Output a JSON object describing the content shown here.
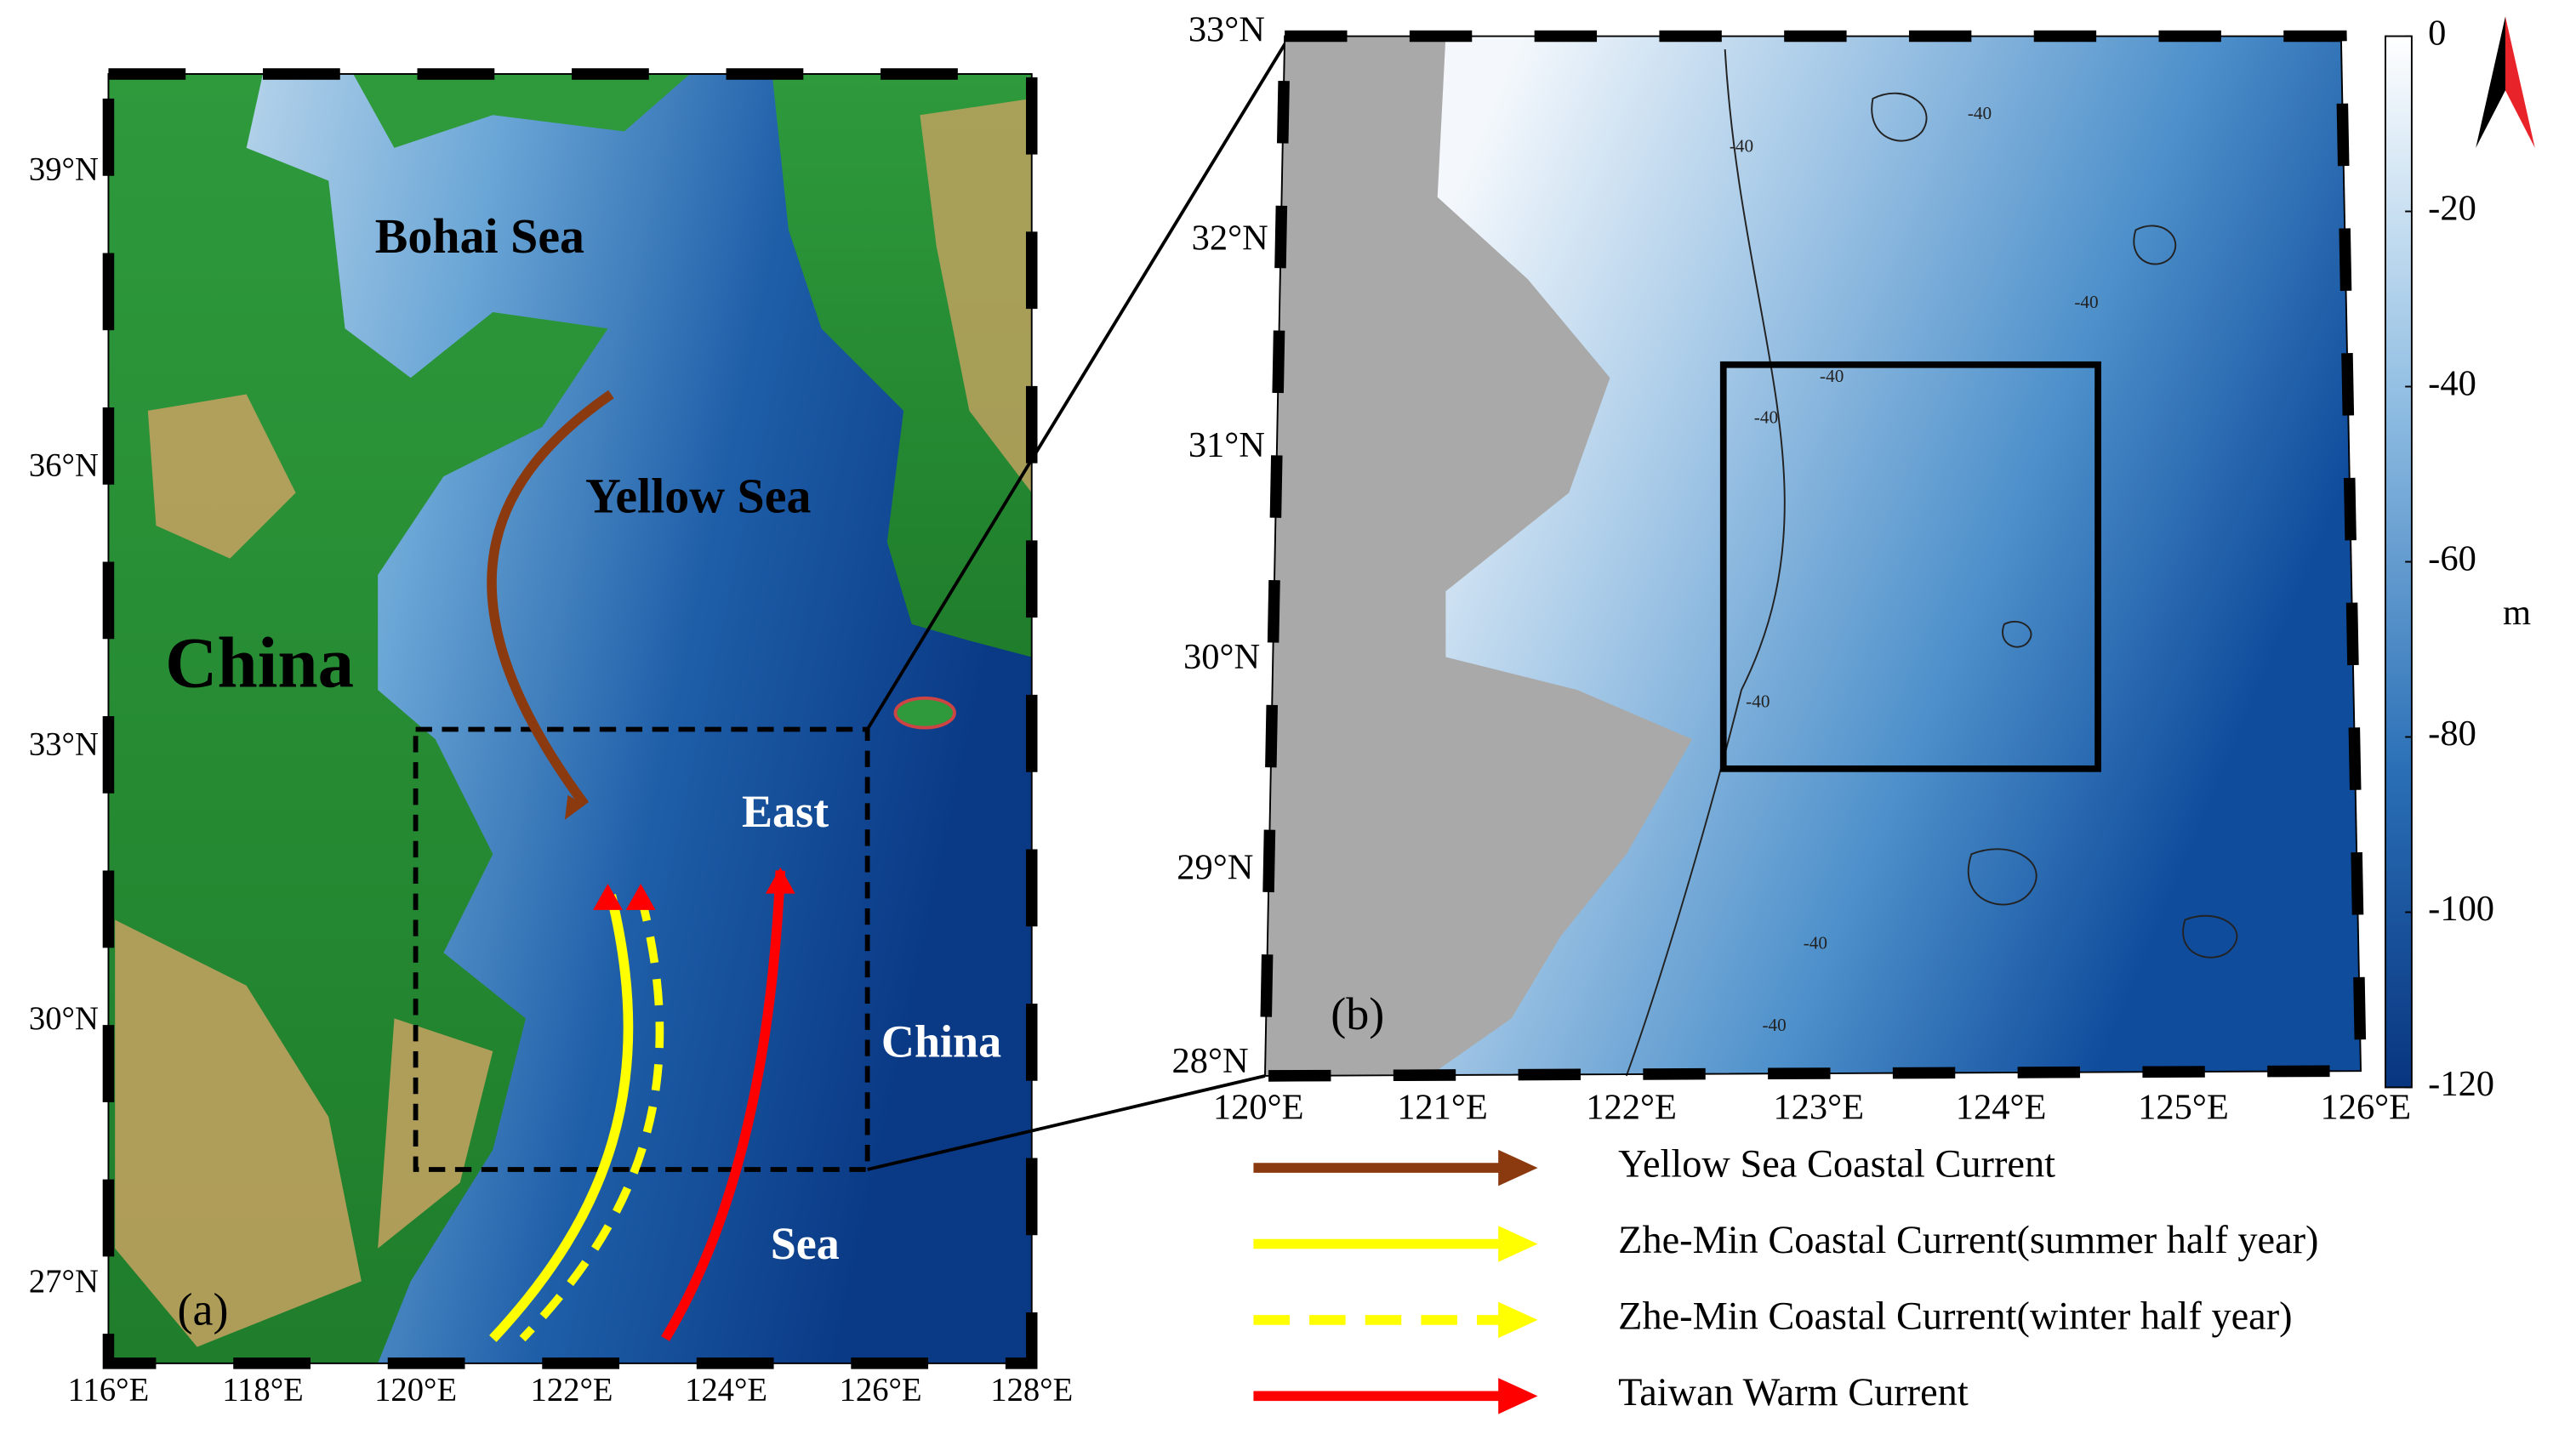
{
  "panel_a": {
    "label": "(a)",
    "lon_ticks": [
      "116°E",
      "118°E",
      "120°E",
      "122°E",
      "124°E",
      "126°E",
      "128°E"
    ],
    "lat_ticks": [
      "39°N",
      "36°N",
      "33°N",
      "30°N",
      "27°N"
    ],
    "places": [
      "Bohai Sea",
      "Yellow Sea",
      "China",
      "East",
      "China",
      "Sea"
    ]
  },
  "panel_b": {
    "label": "(b)",
    "lon_ticks": [
      "120°E",
      "121°E",
      "122°E",
      "123°E",
      "124°E",
      "125°E",
      "126°E"
    ],
    "lat_ticks": [
      "33°N",
      "32°N",
      "31°N",
      "30°N",
      "29°N",
      "28°N"
    ],
    "contour_labels": [
      "-40",
      "-40",
      "-40",
      "-40",
      "-40",
      "-40",
      "-40",
      "-40"
    ]
  },
  "colorbar": {
    "unit": "m",
    "lim": [
      0,
      -120
    ],
    "ticks": [
      0,
      -20,
      -40,
      -60,
      -80,
      -100,
      -120
    ]
  },
  "legend": [
    {
      "label": "Yellow Sea Coastal Current",
      "color": "#8b3a10",
      "style": "solid"
    },
    {
      "label": "Zhe-Min Coastal Current(summer half year)",
      "color": "#ffff00",
      "style": "solid"
    },
    {
      "label": "Zhe-Min Coastal Current(winter half year)",
      "color": "#ffff00",
      "style": "dashed"
    },
    {
      "label": "Taiwan Warm Current",
      "color": "#ff0000",
      "style": "solid"
    }
  ]
}
